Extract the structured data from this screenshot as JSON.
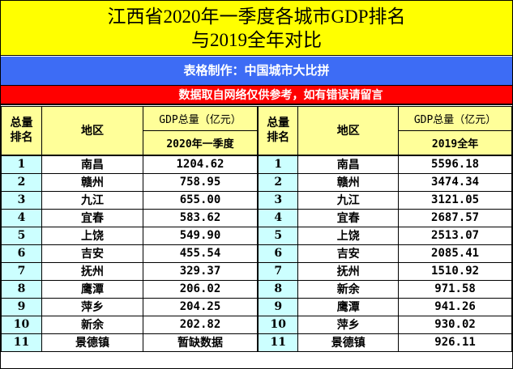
{
  "title": {
    "line1": "江西省2020年一季度各城市GDP排名",
    "line2": "与2019全年对比"
  },
  "maker": "表格制作：中国城市大比拼",
  "note": "数据取自网络仅供参考，如有错误请留言",
  "colors": {
    "title_bg": "#ffff00",
    "maker_bg": "#3d6cf5",
    "note_bg": "#ff0000",
    "header_bg": "#ffff99",
    "rank_bg": "#ccffff"
  },
  "left_table": {
    "headers": {
      "rank": "总量\n排名",
      "region": "地区",
      "gdp": "GDP总量（亿元）",
      "period": "2020年一季度"
    },
    "rows": [
      {
        "rank": "1",
        "region": "南昌",
        "value": "1204.62"
      },
      {
        "rank": "2",
        "region": "赣州",
        "value": "758.95"
      },
      {
        "rank": "3",
        "region": "九江",
        "value": "655.00"
      },
      {
        "rank": "4",
        "region": "宜春",
        "value": "583.62"
      },
      {
        "rank": "5",
        "region": "上饶",
        "value": "549.90"
      },
      {
        "rank": "6",
        "region": "吉安",
        "value": "455.54"
      },
      {
        "rank": "7",
        "region": "抚州",
        "value": "329.37"
      },
      {
        "rank": "8",
        "region": "鹰潭",
        "value": "206.02"
      },
      {
        "rank": "9",
        "region": "萍乡",
        "value": "204.25"
      },
      {
        "rank": "10",
        "region": "新余",
        "value": "202.82"
      },
      {
        "rank": "11",
        "region": "景德镇",
        "value": "暂缺数据"
      }
    ]
  },
  "right_table": {
    "headers": {
      "rank": "总量\n排名",
      "region": "地区",
      "gdp": "GDP总量（亿元）",
      "period": "2019全年"
    },
    "rows": [
      {
        "rank": "1",
        "region": "南昌",
        "value": "5596.18"
      },
      {
        "rank": "2",
        "region": "赣州",
        "value": "3474.34"
      },
      {
        "rank": "3",
        "region": "九江",
        "value": "3121.05"
      },
      {
        "rank": "4",
        "region": "宜春",
        "value": "2687.57"
      },
      {
        "rank": "5",
        "region": "上饶",
        "value": "2513.07"
      },
      {
        "rank": "6",
        "region": "吉安",
        "value": "2085.41"
      },
      {
        "rank": "7",
        "region": "抚州",
        "value": "1510.92"
      },
      {
        "rank": "8",
        "region": "新余",
        "value": "971.58"
      },
      {
        "rank": "9",
        "region": "鹰潭",
        "value": "941.26"
      },
      {
        "rank": "10",
        "region": "萍乡",
        "value": "930.02"
      },
      {
        "rank": "11",
        "region": "景德镇",
        "value": "926.11"
      }
    ]
  }
}
